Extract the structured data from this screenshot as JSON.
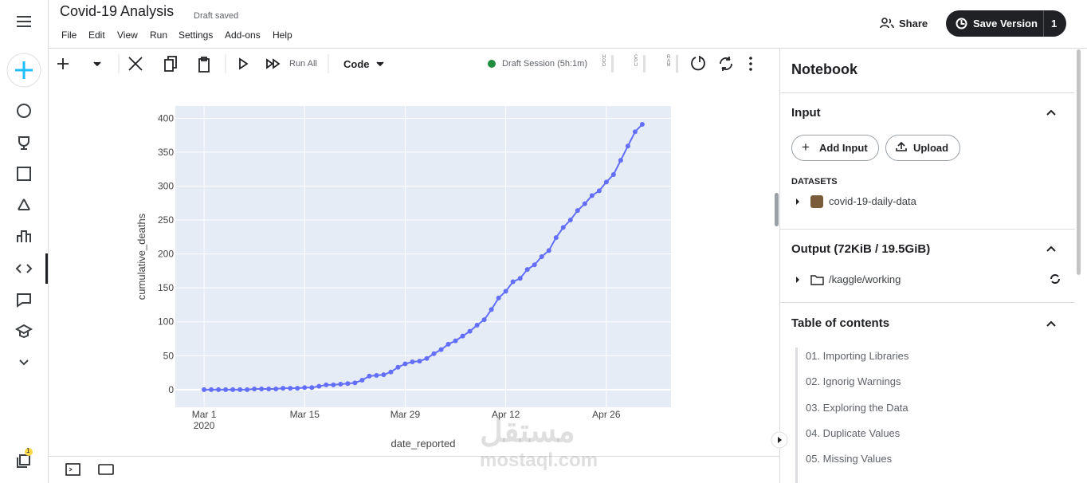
{
  "header": {
    "title": "Covid-19 Analysis",
    "status": "Draft saved",
    "menu": [
      "File",
      "Edit",
      "View",
      "Run",
      "Settings",
      "Add-ons",
      "Help"
    ],
    "share": "Share",
    "save_version": "Save Version",
    "version_count": "1"
  },
  "toolbar": {
    "run_all": "Run All",
    "cell_type": "Code",
    "session": "Draft Session (5h:1m)",
    "meters": [
      "HDD",
      "CPU",
      "RAM"
    ]
  },
  "sidebar": {
    "notification_count": "1"
  },
  "panel": {
    "title": "Notebook",
    "input": {
      "title": "Input",
      "add_input": "Add Input",
      "upload": "Upload",
      "datasets_label": "DATASETS",
      "datasets": [
        "covid-19-daily-data"
      ]
    },
    "output": {
      "title": "Output (72KiB / 19.5GiB)",
      "folders": [
        "/kaggle/working"
      ]
    },
    "toc": {
      "title": "Table of contents",
      "items": [
        "01. Importing Libraries",
        "02. Ignorig Warnings",
        "03. Exploring the Data",
        "04. Duplicate Values",
        "05. Missing Values"
      ]
    }
  },
  "watermark": {
    "arabic": "مستقل",
    "latin": "mostaql.com"
  },
  "chart_data": {
    "type": "line",
    "xlabel": "date_reported",
    "ylabel": "cumulative_deaths",
    "color": "#636efa",
    "markers": true,
    "grid": true,
    "x": [
      "2020-03-01",
      "2020-03-02",
      "2020-03-03",
      "2020-03-04",
      "2020-03-05",
      "2020-03-06",
      "2020-03-07",
      "2020-03-08",
      "2020-03-09",
      "2020-03-10",
      "2020-03-11",
      "2020-03-12",
      "2020-03-13",
      "2020-03-14",
      "2020-03-15",
      "2020-03-16",
      "2020-03-17",
      "2020-03-18",
      "2020-03-19",
      "2020-03-20",
      "2020-03-21",
      "2020-03-22",
      "2020-03-23",
      "2020-03-24",
      "2020-03-25",
      "2020-03-26",
      "2020-03-27",
      "2020-03-28",
      "2020-03-29",
      "2020-03-30",
      "2020-03-31",
      "2020-04-01",
      "2020-04-02",
      "2020-04-03",
      "2020-04-04",
      "2020-04-05",
      "2020-04-06",
      "2020-04-07",
      "2020-04-08",
      "2020-04-09",
      "2020-04-10",
      "2020-04-11",
      "2020-04-12",
      "2020-04-13",
      "2020-04-14",
      "2020-04-15",
      "2020-04-16",
      "2020-04-17",
      "2020-04-18",
      "2020-04-19",
      "2020-04-20",
      "2020-04-21",
      "2020-04-22",
      "2020-04-23",
      "2020-04-24",
      "2020-04-25",
      "2020-04-26",
      "2020-04-27",
      "2020-04-28",
      "2020-04-29",
      "2020-04-30",
      "2020-05-01"
    ],
    "values": [
      0,
      0,
      0,
      0,
      0,
      0,
      0,
      1,
      1,
      1,
      1,
      2,
      2,
      2,
      3,
      3,
      5,
      7,
      7,
      8,
      9,
      10,
      14,
      20,
      21,
      22,
      26,
      33,
      38,
      41,
      42,
      46,
      53,
      59,
      67,
      72,
      79,
      86,
      95,
      103,
      118,
      135,
      145,
      159,
      164,
      177,
      184,
      196,
      205,
      224,
      239,
      250,
      264,
      274,
      286,
      293,
      306,
      317,
      338,
      359,
      380,
      391
    ],
    "xlim": [
      "2020-02-26",
      "2020-05-05"
    ],
    "xticks": [
      {
        "value": "2020-03-01",
        "label": "Mar 1\n2020"
      },
      {
        "value": "2020-03-15",
        "label": "Mar 15"
      },
      {
        "value": "2020-03-29",
        "label": "Mar 29"
      },
      {
        "value": "2020-04-12",
        "label": "Apr 12"
      },
      {
        "value": "2020-04-26",
        "label": "Apr 26"
      }
    ],
    "ylim": [
      -26,
      418
    ],
    "yticks": [
      0,
      50,
      100,
      150,
      200,
      250,
      300,
      350,
      400
    ]
  }
}
